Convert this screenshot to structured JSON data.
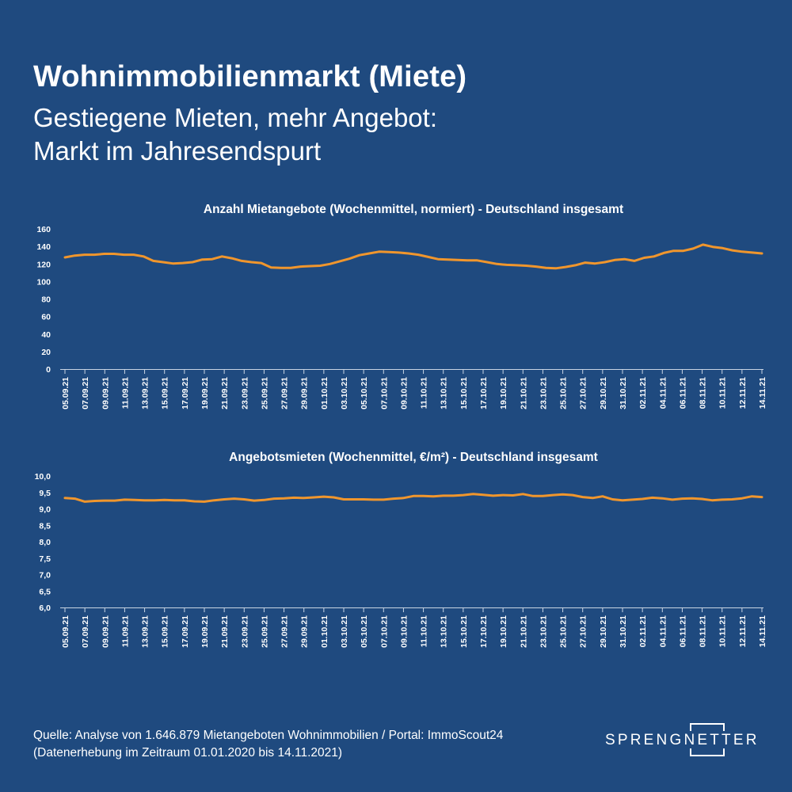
{
  "header": {
    "title": "Wohnimmobilienmarkt (Miete)",
    "subtitle_line1": "Gestiegene Mieten, mehr Angebot:",
    "subtitle_line2": "Markt im Jahresendspurt"
  },
  "colors": {
    "background": "#1f4a7f",
    "line": "#f0962d",
    "text": "#ffffff"
  },
  "chart_data": [
    {
      "type": "line",
      "title": "Anzahl Mietangebote (Wochenmittel, normiert) - Deutschland insgesamt",
      "xlabel": "",
      "ylabel": "",
      "ylim": [
        0,
        160
      ],
      "y_ticks": [
        "0",
        "20",
        "40",
        "60",
        "80",
        "100",
        "120",
        "140",
        "160"
      ],
      "x_tick_labels": [
        "05.09.21",
        "07.09.21",
        "09.09.21",
        "11.09.21",
        "13.09.21",
        "15.09.21",
        "17.09.21",
        "19.09.21",
        "21.09.21",
        "23.09.21",
        "25.09.21",
        "27.09.21",
        "29.09.21",
        "01.10.21",
        "03.10.21",
        "05.10.21",
        "07.10.21",
        "09.10.21",
        "11.10.21",
        "13.10.21",
        "15.10.21",
        "17.10.21",
        "19.10.21",
        "21.10.21",
        "23.10.21",
        "25.10.21",
        "27.10.21",
        "29.10.21",
        "31.10.21",
        "02.11.21",
        "04.11.21",
        "06.11.21",
        "08.11.21",
        "10.11.21",
        "12.11.21",
        "14.11.21"
      ],
      "grid": false,
      "series": [
        {
          "values": [
            127.5,
            129.5,
            130.5,
            130.5,
            131.5,
            131.5,
            130.5,
            130.5,
            128.5,
            123.5,
            122,
            120.5,
            121,
            122,
            125,
            125.5,
            128.5,
            126.5,
            123.5,
            122,
            121,
            116,
            115.5,
            115.5,
            117,
            117.5,
            118,
            120,
            123,
            126,
            130,
            132,
            134,
            133.5,
            133,
            132,
            130.5,
            128,
            125.5,
            125,
            124.5,
            124,
            124,
            122,
            120,
            119,
            118.5,
            118,
            117,
            115.5,
            115,
            116.5,
            118.5,
            121.5,
            120.5,
            122,
            124.5,
            125.5,
            123.5,
            127,
            128.5,
            132.5,
            135,
            135,
            137.5,
            142,
            139.5,
            138,
            135.5,
            134,
            133,
            132
          ]
        }
      ]
    },
    {
      "type": "line",
      "title": "Angebotsmieten (Wochenmittel, €/m²) - Deutschland insgesamt",
      "xlabel": "",
      "ylabel": "",
      "ylim": [
        6.0,
        10.0
      ],
      "y_ticks": [
        "6,0",
        "6,5",
        "7,0",
        "7,5",
        "8,0",
        "8,5",
        "9,0",
        "9,5",
        "10,0"
      ],
      "x_tick_labels": [
        "05.09.21",
        "07.09.21",
        "09.09.21",
        "11.09.21",
        "13.09.21",
        "15.09.21",
        "17.09.21",
        "19.09.21",
        "21.09.21",
        "23.09.21",
        "25.09.21",
        "27.09.21",
        "29.09.21",
        "01.10.21",
        "03.10.21",
        "05.10.21",
        "07.10.21",
        "09.10.21",
        "11.10.21",
        "13.10.21",
        "15.10.21",
        "17.10.21",
        "19.10.21",
        "21.10.21",
        "23.10.21",
        "25.10.21",
        "27.10.21",
        "29.10.21",
        "31.10.21",
        "02.11.21",
        "04.11.21",
        "06.11.21",
        "08.11.21",
        "10.11.21",
        "12.11.21",
        "14.11.21"
      ],
      "grid": false,
      "series": [
        {
          "values": [
            9.33,
            9.31,
            9.22,
            9.24,
            9.25,
            9.25,
            9.28,
            9.27,
            9.26,
            9.26,
            9.27,
            9.26,
            9.26,
            9.23,
            9.22,
            9.26,
            9.29,
            9.31,
            9.29,
            9.25,
            9.27,
            9.31,
            9.32,
            9.34,
            9.33,
            9.35,
            9.37,
            9.35,
            9.29,
            9.29,
            9.29,
            9.28,
            9.28,
            9.31,
            9.33,
            9.39,
            9.39,
            9.38,
            9.4,
            9.4,
            9.42,
            9.45,
            9.43,
            9.4,
            9.42,
            9.41,
            9.45,
            9.39,
            9.39,
            9.42,
            9.44,
            9.42,
            9.36,
            9.33,
            9.38,
            9.29,
            9.26,
            9.28,
            9.3,
            9.34,
            9.32,
            9.28,
            9.31,
            9.32,
            9.3,
            9.26,
            9.28,
            9.29,
            9.32,
            9.38,
            9.36
          ]
        }
      ]
    }
  ],
  "footer": {
    "source_line1": "Quelle: Analyse von 1.646.879 Mietangeboten Wohnimmobilien / Portal: ImmoScout24",
    "source_line2": "(Datenerhebung im Zeitraum 01.01.2020 bis  14.11.2021)"
  },
  "logo": {
    "text": "SPRENGNETTER",
    "icon": "sprengnetter-bracket-logo"
  }
}
